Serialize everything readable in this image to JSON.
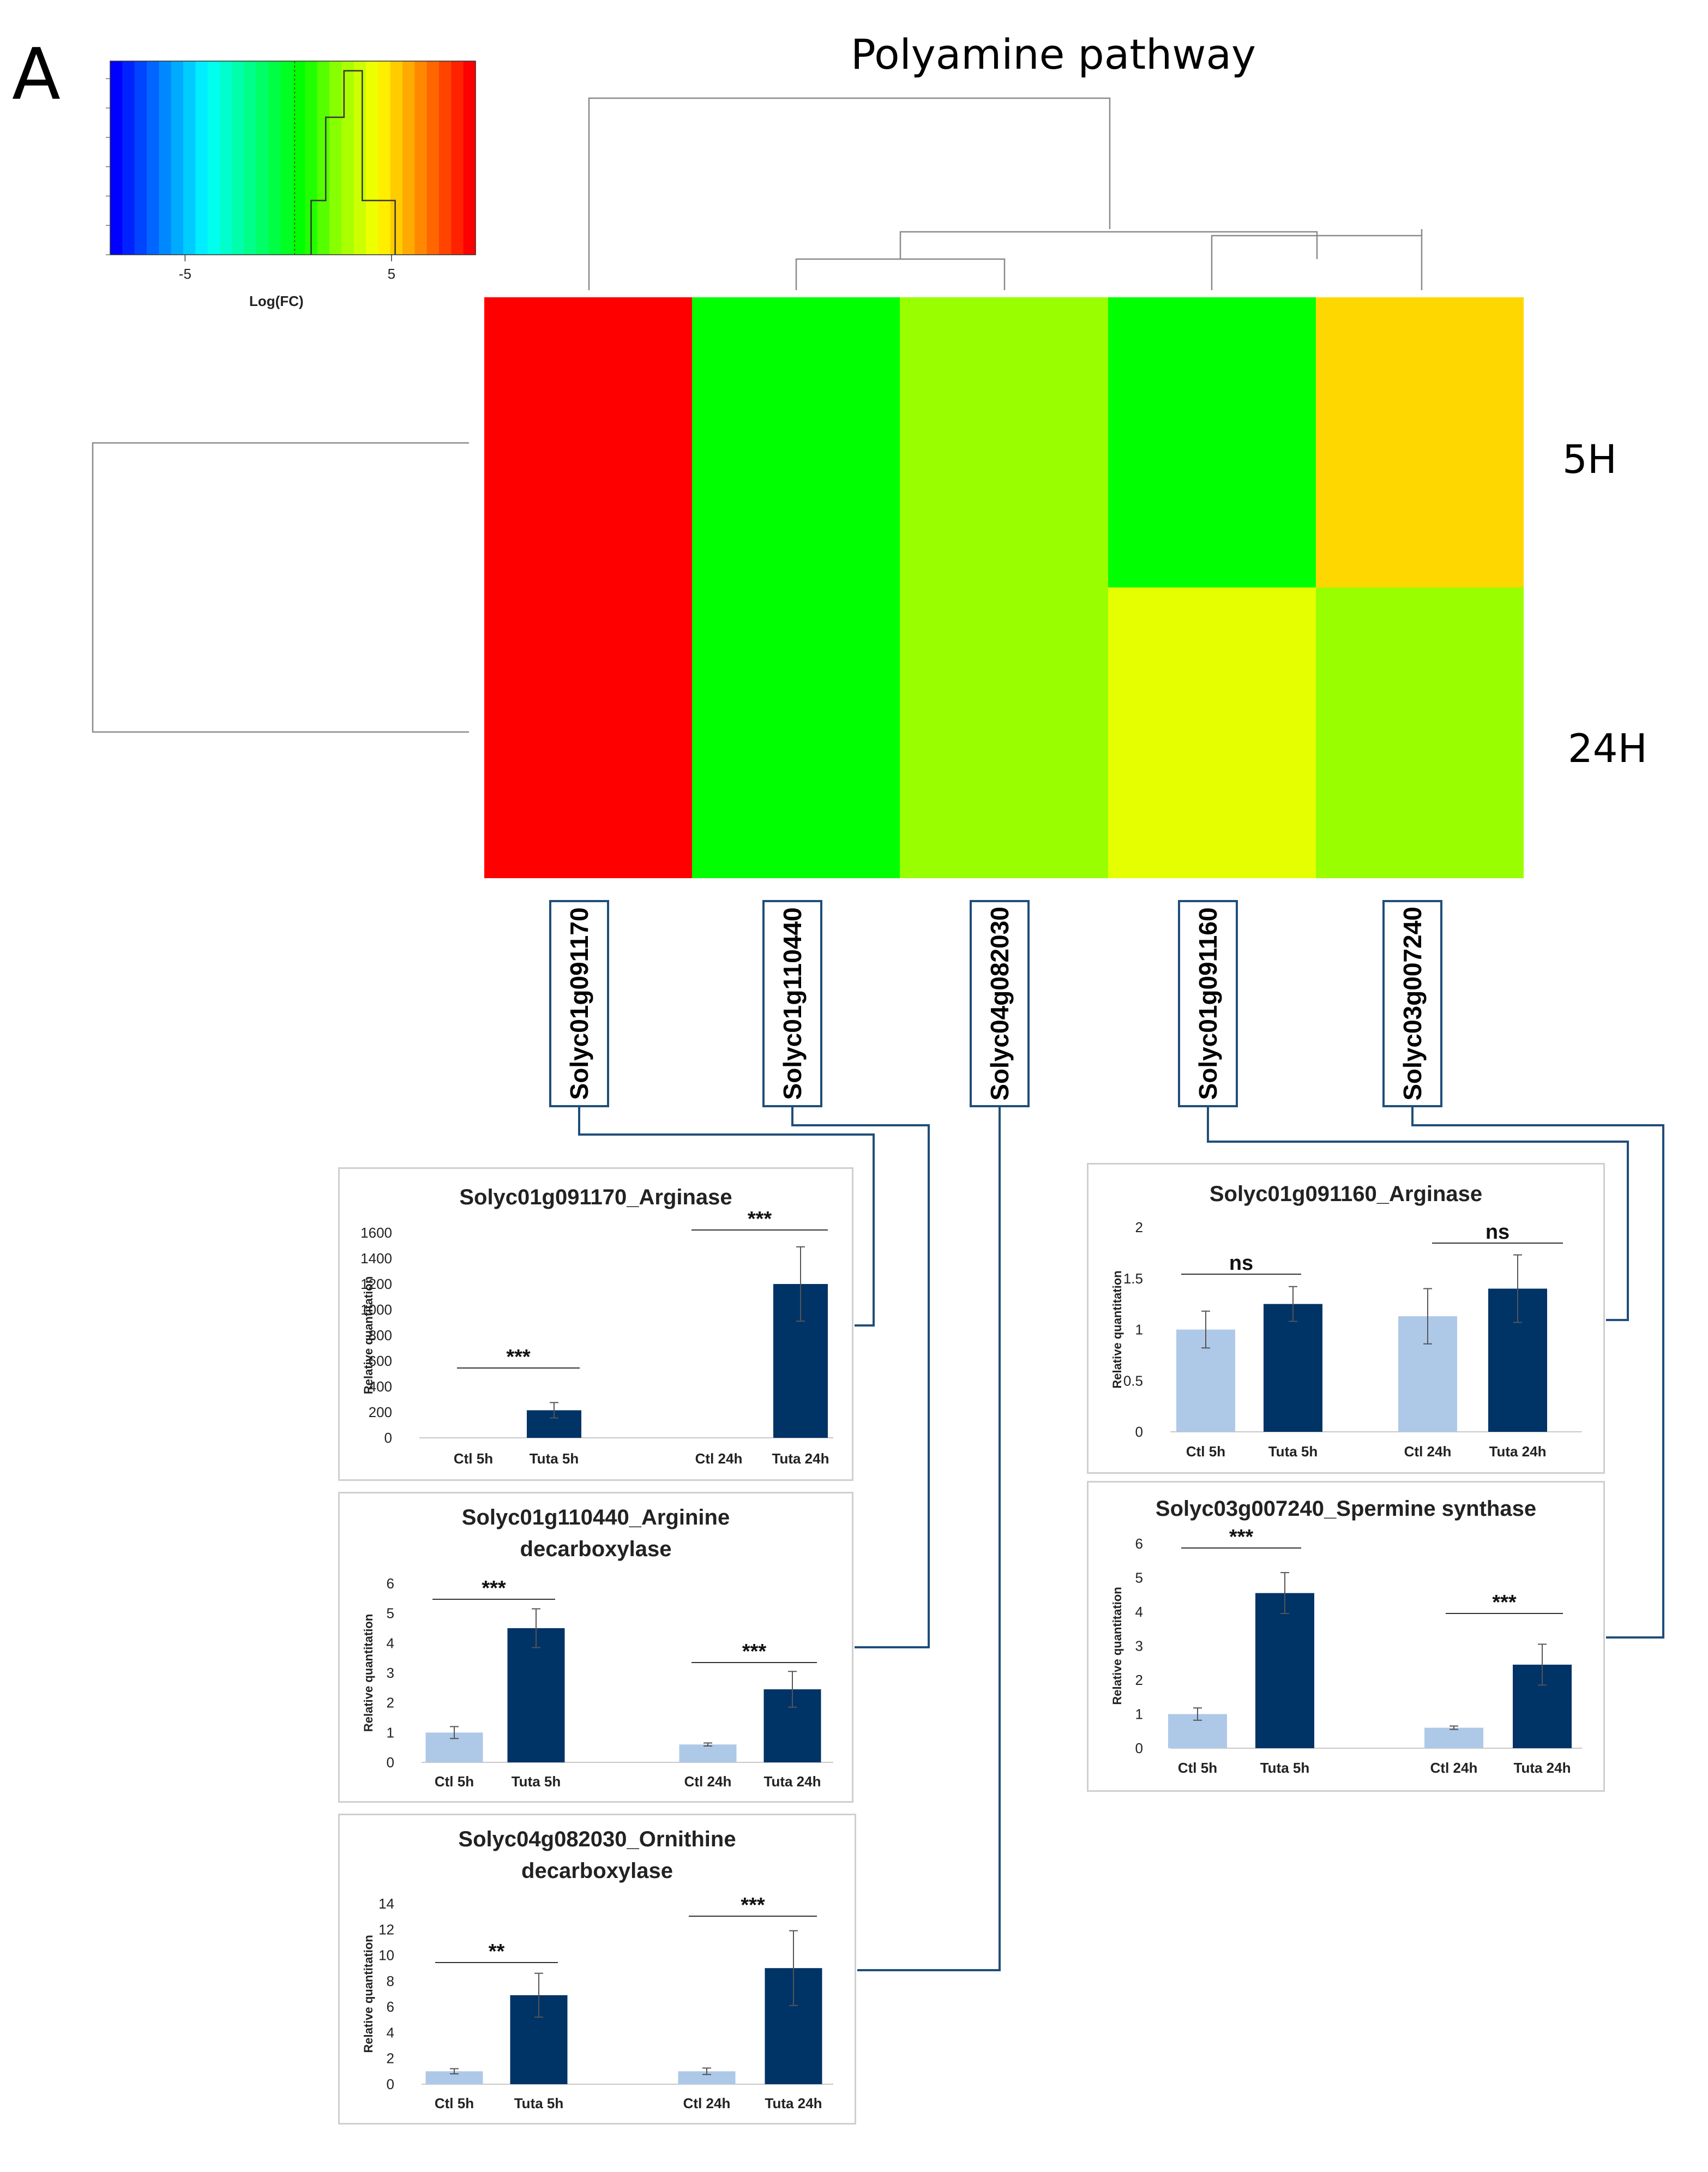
{
  "panel_letter": "A",
  "title": "Polyamine pathway",
  "heatmap": {
    "row_labels": [
      "5H",
      "24H"
    ],
    "colors": [
      [
        "#ff0000",
        "#00ff00",
        "#99ff00",
        "#00ff00",
        "#ffd700"
      ],
      [
        "#ff0000",
        "#00ff00",
        "#99ff00",
        "#e6ff00",
        "#99ff00"
      ]
    ],
    "key": {
      "xlabel": "Log(FC)",
      "ticks": [
        "-5",
        "5"
      ],
      "colors": [
        "#0000ff",
        "#0022ff",
        "#0044ff",
        "#0066ff",
        "#0088ff",
        "#00aaff",
        "#00ccff",
        "#00eeff",
        "#00ffee",
        "#00ffcc",
        "#00ffaa",
        "#00ff88",
        "#00ff66",
        "#00ff44",
        "#00ff22",
        "#00ff00",
        "#22ff00",
        "#55ff00",
        "#88ff00",
        "#aaff00",
        "#ccff00",
        "#eeff00",
        "#ffee00",
        "#ffcc00",
        "#ffaa00",
        "#ff8800",
        "#ff6600",
        "#ff4400",
        "#ff2200",
        "#ff0000"
      ]
    }
  },
  "genes": [
    "Solyc01g091170",
    "Solyc01g110440",
    "Solyc04g082030",
    "Solyc01g091160",
    "Solyc03g007240"
  ],
  "colors": {
    "ctl": "#aec8e8",
    "tuta": "#003366",
    "connector": "#1f4e79"
  },
  "chart_data": [
    {
      "type": "bar",
      "title_lines": [
        "Solyc01g091170_Arginase"
      ],
      "ylabel": "Relative quantitation",
      "categories": [
        "Ctl 5h",
        "Tuta 5h",
        "Ctl 24h",
        "Tuta 24h"
      ],
      "values": [
        1,
        215,
        1,
        1200
      ],
      "errors": [
        0,
        60,
        0,
        290
      ],
      "ylim": [
        0,
        1600
      ],
      "yticks": [
        "0",
        "200",
        "400",
        "600",
        "800",
        "1000",
        "1200",
        "1400",
        "1600"
      ],
      "significance": [
        "***",
        "***"
      ]
    },
    {
      "type": "bar",
      "title_lines": [
        "Solyc01g110440_Arginine",
        "decarboxylase"
      ],
      "ylabel": "Relative quantitation",
      "categories": [
        "Ctl 5h",
        "Tuta 5h",
        "Ctl 24h",
        "Tuta 24h"
      ],
      "values": [
        1,
        4.5,
        0.6,
        2.45
      ],
      "errors": [
        0.2,
        0.65,
        0.05,
        0.6
      ],
      "ylim": [
        0,
        6
      ],
      "yticks": [
        "0",
        "1",
        "2",
        "3",
        "4",
        "5",
        "6"
      ],
      "significance": [
        "***",
        "***"
      ]
    },
    {
      "type": "bar",
      "title_lines": [
        "Solyc04g082030_Ornithine",
        "decarboxylase"
      ],
      "ylabel": "Relative quantitation",
      "categories": [
        "Ctl 5h",
        "Tuta 5h",
        "Ctl 24h",
        "Tuta 24h"
      ],
      "values": [
        1,
        6.9,
        1,
        9
      ],
      "errors": [
        0.2,
        1.7,
        0.25,
        2.9
      ],
      "ylim": [
        0,
        14
      ],
      "yticks": [
        "0",
        "2",
        "4",
        "6",
        "8",
        "10",
        "12",
        "14"
      ],
      "significance": [
        "**",
        "***"
      ]
    },
    {
      "type": "bar",
      "title_lines": [
        "Solyc01g091160_Arginase"
      ],
      "ylabel": "Relative quantitation",
      "categories": [
        "Ctl 5h",
        "Tuta 5h",
        "Ctl 24h",
        "Tuta 24h"
      ],
      "values": [
        1,
        1.25,
        1.13,
        1.4
      ],
      "errors": [
        0.18,
        0.17,
        0.27,
        0.33
      ],
      "ylim": [
        0,
        2
      ],
      "yticks": [
        "0",
        "0.5",
        "1",
        "1.5",
        "2"
      ],
      "significance": [
        "ns",
        "ns"
      ]
    },
    {
      "type": "bar",
      "title_lines": [
        "Solyc03g007240_Spermine synthase"
      ],
      "ylabel": "Relative quantitation",
      "categories": [
        "Ctl 5h",
        "Tuta 5h",
        "Ctl 24h",
        "Tuta 24h"
      ],
      "values": [
        1,
        4.55,
        0.6,
        2.45
      ],
      "errors": [
        0.18,
        0.6,
        0.05,
        0.6
      ],
      "ylim": [
        0,
        6
      ],
      "yticks": [
        "0",
        "1",
        "2",
        "3",
        "4",
        "5",
        "6"
      ],
      "significance": [
        "***",
        "***"
      ]
    }
  ]
}
